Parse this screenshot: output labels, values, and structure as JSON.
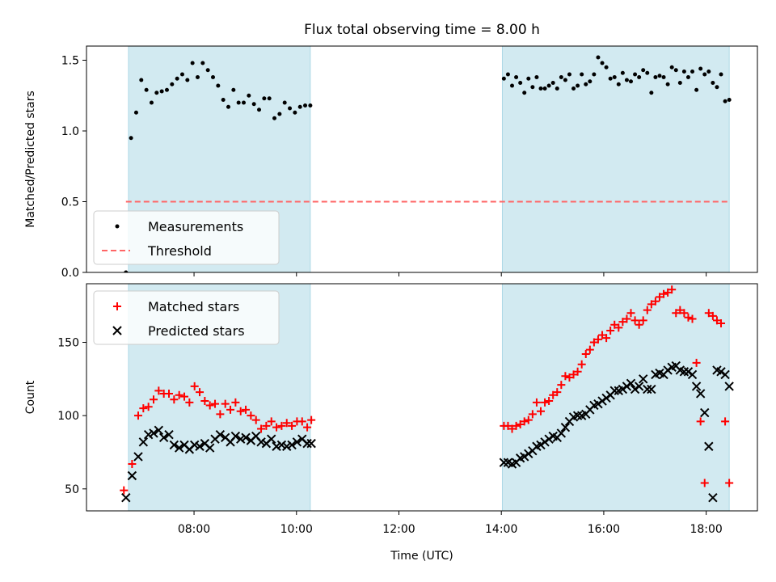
{
  "chart_data": {
    "title": "Flux total observing time = 8.00 h",
    "x_axis": {
      "label": "Time (UTC)",
      "unit": "hour of day",
      "range": [
        5.9,
        19.0
      ],
      "tick_values": [
        8,
        10,
        12,
        14,
        16,
        18
      ],
      "tick_labels": [
        "08:00",
        "10:00",
        "12:00",
        "14:00",
        "16:00",
        "18:00"
      ]
    },
    "observing_windows": [
      [
        6.72,
        10.27
      ],
      [
        14.02,
        18.45
      ]
    ],
    "window_color": "#add8e6",
    "panels": [
      {
        "type": "scatter",
        "ylabel": "Matched/Predicted stars",
        "ylim": [
          0.0,
          1.6
        ],
        "yticks": [
          0.0,
          0.5,
          1.0,
          1.5
        ],
        "ytick_labels": [
          "0.0",
          "0.5",
          "1.0",
          "1.5"
        ],
        "legend": {
          "location": "lower-left"
        },
        "series": [
          {
            "name": "Measurements",
            "marker": "dot",
            "color": "#000000",
            "x": [
              6.67,
              6.77,
              6.87,
              6.97,
              7.07,
              7.17,
              7.27,
              7.37,
              7.47,
              7.57,
              7.67,
              7.77,
              7.87,
              7.97,
              8.07,
              8.17,
              8.27,
              8.37,
              8.47,
              8.57,
              8.67,
              8.77,
              8.87,
              8.97,
              9.07,
              9.17,
              9.27,
              9.37,
              9.47,
              9.57,
              9.67,
              9.77,
              9.87,
              9.97,
              10.07,
              10.17,
              10.27,
              14.05,
              14.13,
              14.21,
              14.29,
              14.37,
              14.45,
              14.53,
              14.61,
              14.69,
              14.77,
              14.85,
              14.93,
              15.01,
              15.09,
              15.17,
              15.25,
              15.33,
              15.41,
              15.49,
              15.57,
              15.65,
              15.73,
              15.81,
              15.89,
              15.97,
              16.05,
              16.13,
              16.21,
              16.29,
              16.37,
              16.45,
              16.53,
              16.61,
              16.69,
              16.77,
              16.85,
              16.93,
              17.01,
              17.09,
              17.17,
              17.25,
              17.33,
              17.41,
              17.49,
              17.57,
              17.65,
              17.73,
              17.81,
              17.89,
              17.97,
              18.05,
              18.13,
              18.21,
              18.29,
              18.37,
              18.45
            ],
            "y": [
              0.0,
              0.95,
              1.13,
              1.36,
              1.29,
              1.2,
              1.27,
              1.28,
              1.29,
              1.33,
              1.37,
              1.4,
              1.36,
              1.48,
              1.38,
              1.48,
              1.43,
              1.38,
              1.32,
              1.22,
              1.17,
              1.29,
              1.2,
              1.2,
              1.25,
              1.19,
              1.15,
              1.23,
              1.23,
              1.09,
              1.12,
              1.2,
              1.16,
              1.13,
              1.17,
              1.18,
              1.18,
              1.37,
              1.4,
              1.32,
              1.38,
              1.34,
              1.27,
              1.37,
              1.31,
              1.38,
              1.3,
              1.3,
              1.32,
              1.34,
              1.3,
              1.38,
              1.36,
              1.4,
              1.3,
              1.32,
              1.4,
              1.33,
              1.35,
              1.4,
              1.52,
              1.48,
              1.45,
              1.37,
              1.38,
              1.33,
              1.41,
              1.36,
              1.35,
              1.4,
              1.38,
              1.43,
              1.41,
              1.27,
              1.38,
              1.39,
              1.38,
              1.33,
              1.45,
              1.43,
              1.34,
              1.42,
              1.38,
              1.42,
              1.29,
              1.44,
              1.4,
              1.42,
              1.34,
              1.31,
              1.4,
              1.21,
              1.22
            ]
          },
          {
            "name": "Threshold",
            "marker": "dashed-line",
            "color": "#ff6666",
            "x": [
              6.67,
              18.45
            ],
            "y": [
              0.5,
              0.5
            ]
          }
        ]
      },
      {
        "type": "scatter",
        "ylabel": "Count",
        "ylim": [
          35,
          190
        ],
        "yticks": [
          50,
          100,
          150
        ],
        "ytick_labels": [
          "50",
          "100",
          "150"
        ],
        "legend": {
          "location": "top-left"
        },
        "series": [
          {
            "name": "Matched stars",
            "marker": "plus",
            "color": "#ff0000",
            "x": [
              6.63,
              6.79,
              6.91,
              7.01,
              7.11,
              7.21,
              7.31,
              7.41,
              7.51,
              7.61,
              7.71,
              7.81,
              7.91,
              8.01,
              8.11,
              8.21,
              8.31,
              8.41,
              8.51,
              8.61,
              8.71,
              8.81,
              8.91,
              9.01,
              9.11,
              9.21,
              9.31,
              9.41,
              9.51,
              9.61,
              9.71,
              9.81,
              9.91,
              10.01,
              10.11,
              10.21,
              10.29,
              14.05,
              14.13,
              14.21,
              14.29,
              14.37,
              14.45,
              14.53,
              14.61,
              14.69,
              14.77,
              14.85,
              14.93,
              15.01,
              15.09,
              15.17,
              15.25,
              15.33,
              15.41,
              15.49,
              15.57,
              15.65,
              15.73,
              15.81,
              15.89,
              15.97,
              16.05,
              16.13,
              16.21,
              16.29,
              16.37,
              16.45,
              16.53,
              16.61,
              16.69,
              16.77,
              16.85,
              16.93,
              17.01,
              17.09,
              17.17,
              17.25,
              17.33,
              17.41,
              17.49,
              17.57,
              17.65,
              17.73,
              17.81,
              17.89,
              17.97,
              18.05,
              18.13,
              18.21,
              18.29,
              18.37,
              18.45
            ],
            "y": [
              49,
              67,
              100,
              105,
              106,
              111,
              117,
              115,
              115,
              111,
              114,
              113,
              109,
              120,
              116,
              110,
              107,
              108,
              101,
              108,
              104,
              109,
              103,
              104,
              100,
              97,
              91,
              93,
              96,
              92,
              93,
              95,
              93,
              96,
              96,
              92,
              97,
              93,
              93,
              91,
              93,
              94,
              96,
              97,
              101,
              109,
              103,
              109,
              110,
              114,
              116,
              121,
              127,
              126,
              128,
              130,
              135,
              142,
              145,
              150,
              152,
              155,
              153,
              158,
              162,
              160,
              164,
              166,
              170,
              165,
              162,
              165,
              172,
              176,
              178,
              181,
              183,
              184,
              186,
              170,
              172,
              170,
              167,
              166,
              136,
              96,
              54,
              170,
              168,
              165,
              163,
              96,
              54
            ]
          },
          {
            "name": "Predicted stars",
            "marker": "x",
            "color": "#000000",
            "x": [
              6.67,
              6.79,
              6.91,
              7.01,
              7.11,
              7.21,
              7.31,
              7.41,
              7.51,
              7.61,
              7.71,
              7.81,
              7.91,
              8.01,
              8.11,
              8.21,
              8.31,
              8.41,
              8.51,
              8.61,
              8.71,
              8.81,
              8.91,
              9.01,
              9.11,
              9.21,
              9.31,
              9.41,
              9.51,
              9.61,
              9.71,
              9.81,
              9.91,
              10.01,
              10.11,
              10.21,
              10.29,
              14.05,
              14.13,
              14.21,
              14.29,
              14.37,
              14.45,
              14.53,
              14.61,
              14.69,
              14.77,
              14.85,
              14.93,
              15.01,
              15.09,
              15.17,
              15.25,
              15.33,
              15.41,
              15.49,
              15.57,
              15.65,
              15.73,
              15.81,
              15.89,
              15.97,
              16.05,
              16.13,
              16.21,
              16.29,
              16.37,
              16.45,
              16.53,
              16.61,
              16.69,
              16.77,
              16.85,
              16.93,
              17.01,
              17.09,
              17.17,
              17.25,
              17.33,
              17.41,
              17.49,
              17.57,
              17.65,
              17.73,
              17.81,
              17.89,
              17.97,
              18.05,
              18.13,
              18.21,
              18.29,
              18.37,
              18.45
            ],
            "y": [
              44,
              59,
              72,
              82,
              87,
              88,
              90,
              85,
              87,
              80,
              78,
              80,
              77,
              80,
              79,
              81,
              78,
              84,
              87,
              85,
              82,
              86,
              84,
              85,
              83,
              86,
              82,
              81,
              84,
              79,
              80,
              79,
              80,
              82,
              84,
              81,
              81,
              68,
              68,
              67,
              68,
              71,
              72,
              74,
              76,
              79,
              80,
              82,
              84,
              86,
              85,
              88,
              92,
              96,
              99,
              100,
              100,
              101,
              104,
              107,
              108,
              110,
              112,
              114,
              117,
              117,
              118,
              120,
              122,
              118,
              120,
              125,
              118,
              118,
              128,
              129,
              128,
              131,
              133,
              134,
              131,
              130,
              130,
              128,
              120,
              115,
              102,
              79,
              44,
              131,
              130,
              128,
              120
            ]
          }
        ]
      }
    ]
  }
}
